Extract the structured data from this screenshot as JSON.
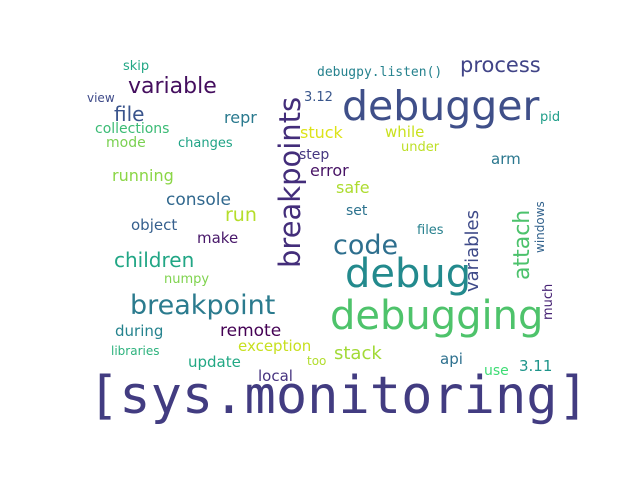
{
  "words": [
    {
      "text": "[sys.monitoring]",
      "color": "#423c81"
    },
    {
      "text": "debugger",
      "color": "#3f4f89"
    },
    {
      "text": "debug",
      "color": "#238a8d"
    },
    {
      "text": "debugging",
      "color": "#4ec36b"
    },
    {
      "text": "breakpoints",
      "color": "#432d7a"
    },
    {
      "text": "breakpoint",
      "color": "#2b7b8e"
    },
    {
      "text": "code",
      "color": "#2e6f8e"
    },
    {
      "text": "attach",
      "color": "#4cc26c"
    },
    {
      "text": "variable",
      "color": "#440e5e"
    },
    {
      "text": "process",
      "color": "#414487"
    },
    {
      "text": "variables",
      "color": "#3f4b89"
    },
    {
      "text": "children",
      "color": "#21a685"
    },
    {
      "text": "file",
      "color": "#3a548c"
    },
    {
      "text": "run",
      "color": "#b5de2b"
    },
    {
      "text": "stack",
      "color": "#a2da37"
    },
    {
      "text": "remote",
      "color": "#440154"
    },
    {
      "text": "console",
      "color": "#31688e"
    },
    {
      "text": "running",
      "color": "#8bd646"
    },
    {
      "text": "error",
      "color": "#471365"
    },
    {
      "text": "stuck",
      "color": "#dde318"
    },
    {
      "text": "repr",
      "color": "#29798e"
    },
    {
      "text": "safe",
      "color": "#addc30"
    },
    {
      "text": "object",
      "color": "#355f8d"
    },
    {
      "text": "make",
      "color": "#48186a"
    },
    {
      "text": "arm",
      "color": "#2a778e"
    },
    {
      "text": "exception",
      "color": "#c8e020"
    },
    {
      "text": "while",
      "color": "#cae11f"
    },
    {
      "text": "collections",
      "color": "#3bbb75"
    },
    {
      "text": "mode",
      "color": "#7ad151"
    },
    {
      "text": "during",
      "color": "#25838e"
    },
    {
      "text": "update",
      "color": "#22a884"
    },
    {
      "text": "local",
      "color": "#46337f"
    },
    {
      "text": "api",
      "color": "#2d708e"
    },
    {
      "text": "use",
      "color": "#3ddc74"
    },
    {
      "text": "3.11",
      "color": "#1f958b"
    },
    {
      "text": "3.12",
      "color": "#39568c"
    },
    {
      "text": "step",
      "color": "#453781"
    },
    {
      "text": "set",
      "color": "#2c728e"
    },
    {
      "text": "numpy",
      "color": "#7fd34e"
    },
    {
      "text": "libraries",
      "color": "#2db27d"
    },
    {
      "text": "too",
      "color": "#b2dd2d"
    },
    {
      "text": "files",
      "color": "#27808e"
    },
    {
      "text": "under",
      "color": "#bddf26"
    },
    {
      "text": "changes",
      "color": "#20a386"
    },
    {
      "text": "skip",
      "color": "#22a785"
    },
    {
      "text": "view",
      "color": "#3e4a89"
    },
    {
      "text": "pid",
      "color": "#1f9e89"
    },
    {
      "text": "debugpy.listen()",
      "color": "#26828e"
    },
    {
      "text": "windows",
      "color": "#33638d"
    },
    {
      "text": "much",
      "color": "#482475"
    }
  ]
}
